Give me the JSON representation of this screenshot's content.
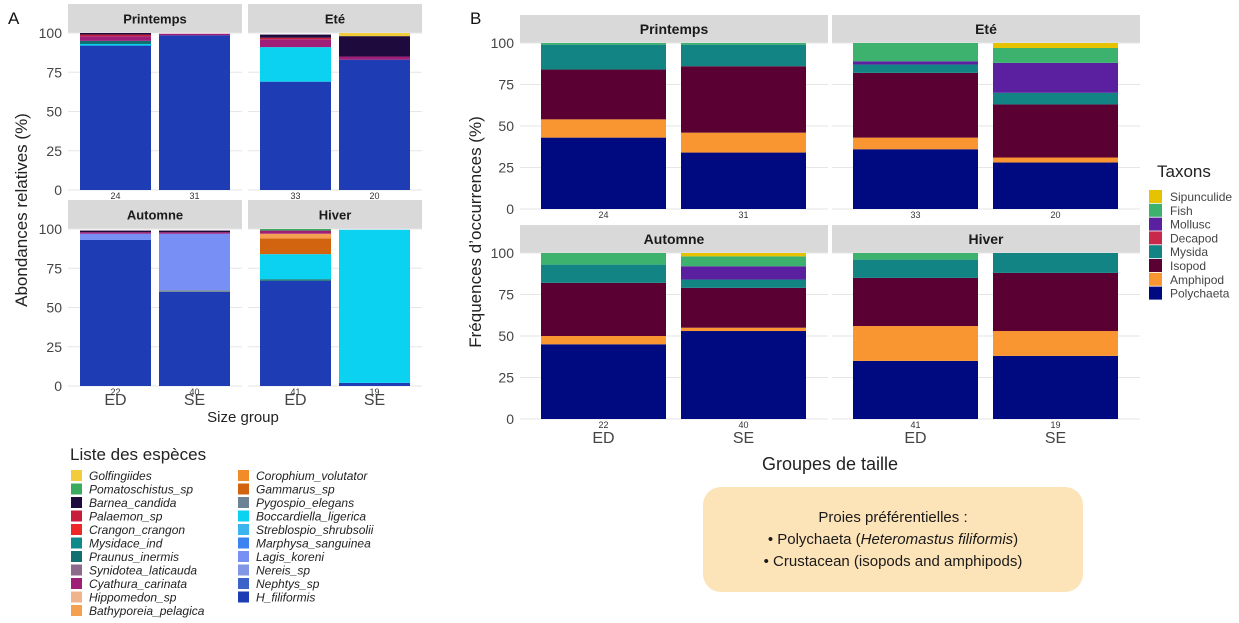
{
  "panel_a": {
    "tag": "A",
    "ylabel": "Abondances relatives (%)",
    "xlabel": "Size group",
    "x_ticks": [
      "ED",
      "SE"
    ],
    "y_ticks": [
      "0",
      "25",
      "50",
      "75",
      "100"
    ],
    "legend_title": "Liste des espèces"
  },
  "panel_b": {
    "tag": "B",
    "ylabel": "Fréquences d’occurrences (%)",
    "xlabel": "Groupes de taille",
    "x_ticks": [
      "ED",
      "SE"
    ],
    "y_ticks": [
      "0",
      "25",
      "50",
      "75",
      "100"
    ],
    "legend_title": "Taxons"
  },
  "note": {
    "title": "Proies préférentielles :",
    "line1_pre": "• Polychaeta (",
    "line1_ital": "Heteromastus filiformis",
    "line1_post": ")",
    "line2": "• Crustacean (isopods and amphipods)"
  },
  "chart_data": [
    {
      "type": "bar",
      "stacked": true,
      "panel": "A",
      "ylabel": "Abondances relatives (%)",
      "xlabel": "Size group",
      "ylim": [
        0,
        100
      ],
      "species": [
        {
          "name": "Golfingiides",
          "color": "#f2cc3a"
        },
        {
          "name": "Pomatoschistus_sp",
          "color": "#3aaa5c"
        },
        {
          "name": "Barnea_candida",
          "color": "#1e0a3c"
        },
        {
          "name": "Palaemon_sp",
          "color": "#c81e3c"
        },
        {
          "name": "Crangon_crangon",
          "color": "#ee2828"
        },
        {
          "name": "Mysidace_ind",
          "color": "#0f8a8a"
        },
        {
          "name": "Praunus_inermis",
          "color": "#127070"
        },
        {
          "name": "Synidotea_laticauda",
          "color": "#8c6a8c"
        },
        {
          "name": "Cyathura_carinata",
          "color": "#9e1e78"
        },
        {
          "name": "Hippomedon_sp",
          "color": "#f0b48c"
        },
        {
          "name": "Bathyporeia_pelagica",
          "color": "#f5a050"
        },
        {
          "name": "Corophium_volutator",
          "color": "#f28c28"
        },
        {
          "name": "Gammarus_sp",
          "color": "#d2640f"
        },
        {
          "name": "Pygospio_elegans",
          "color": "#6e8296"
        },
        {
          "name": "Boccardiella_ligerica",
          "color": "#0ad2f0"
        },
        {
          "name": "Streblospio_shrubsolii",
          "color": "#3cb4f0"
        },
        {
          "name": "Marphysa_sanguinea",
          "color": "#3c82f0"
        },
        {
          "name": "Lagis_koreni",
          "color": "#7890f5"
        },
        {
          "name": "Nereis_sp",
          "color": "#8296e6"
        },
        {
          "name": "Nephtys_sp",
          "color": "#3c64c8"
        },
        {
          "name": "H_filiformis",
          "color": "#1e3cb4"
        }
      ],
      "facets": [
        {
          "title": "Printemps",
          "bars": [
            {
              "group": "ED",
              "n": "24",
              "segments": [
                {
                  "sp": "H_filiformis",
                  "v": 92
                },
                {
                  "sp": "Boccardiella_ligerica",
                  "v": 1
                },
                {
                  "sp": "Praunus_inermis",
                  "v": 2
                },
                {
                  "sp": "Cyathura_carinata",
                  "v": 3
                },
                {
                  "sp": "Palaemon_sp",
                  "v": 1
                },
                {
                  "sp": "Barnea_candida",
                  "v": 1
                }
              ]
            },
            {
              "group": "SE",
              "n": "31",
              "segments": [
                {
                  "sp": "H_filiformis",
                  "v": 98.5
                },
                {
                  "sp": "Cyathura_carinata",
                  "v": 1
                }
              ]
            }
          ]
        },
        {
          "title": "Eté",
          "bars": [
            {
              "group": "ED",
              "n": "33",
              "segments": [
                {
                  "sp": "H_filiformis",
                  "v": 69
                },
                {
                  "sp": "Boccardiella_ligerica",
                  "v": 22
                },
                {
                  "sp": "Cyathura_carinata",
                  "v": 5
                },
                {
                  "sp": "Palaemon_sp",
                  "v": 1
                },
                {
                  "sp": "Barnea_candida",
                  "v": 2
                }
              ]
            },
            {
              "group": "SE",
              "n": "20",
              "segments": [
                {
                  "sp": "H_filiformis",
                  "v": 83
                },
                {
                  "sp": "Cyathura_carinata",
                  "v": 2
                },
                {
                  "sp": "Barnea_candida",
                  "v": 13
                },
                {
                  "sp": "Golfingiides",
                  "v": 2
                }
              ]
            }
          ]
        },
        {
          "title": "Automne",
          "bars": [
            {
              "group": "ED",
              "n": "22",
              "segments": [
                {
                  "sp": "H_filiformis",
                  "v": 93
                },
                {
                  "sp": "Lagis_koreni",
                  "v": 4
                },
                {
                  "sp": "Cyathura_carinata",
                  "v": 1
                },
                {
                  "sp": "Barnea_candida",
                  "v": 1
                }
              ]
            },
            {
              "group": "SE",
              "n": "40",
              "segments": [
                {
                  "sp": "H_filiformis",
                  "v": 60
                },
                {
                  "sp": "Pygospio_elegans",
                  "v": 1
                },
                {
                  "sp": "Lagis_koreni",
                  "v": 36
                },
                {
                  "sp": "Cyathura_carinata",
                  "v": 1
                },
                {
                  "sp": "Barnea_candida",
                  "v": 1
                }
              ]
            }
          ]
        },
        {
          "title": "Hiver",
          "bars": [
            {
              "group": "ED",
              "n": "41",
              "segments": [
                {
                  "sp": "H_filiformis",
                  "v": 67
                },
                {
                  "sp": "Praunus_inermis",
                  "v": 1
                },
                {
                  "sp": "Boccardiella_ligerica",
                  "v": 16
                },
                {
                  "sp": "Gammarus_sp",
                  "v": 10
                },
                {
                  "sp": "Bathyporeia_pelagica",
                  "v": 3
                },
                {
                  "sp": "Cyathura_carinata",
                  "v": 2
                },
                {
                  "sp": "Pomatoschistus_sp",
                  "v": 1
                }
              ]
            },
            {
              "group": "SE",
              "n": "19",
              "segments": [
                {
                  "sp": "H_filiformis",
                  "v": 2
                },
                {
                  "sp": "Boccardiella_ligerica",
                  "v": 97.5
                }
              ]
            }
          ]
        }
      ]
    },
    {
      "type": "bar",
      "stacked": true,
      "panel": "B",
      "ylabel": "Fréquences d’occurrences (%)",
      "xlabel": "Groupes de taille",
      "ylim": [
        0,
        100
      ],
      "taxa": [
        {
          "name": "Sipunculide",
          "color": "#e6c200"
        },
        {
          "name": "Fish",
          "color": "#3cb26e"
        },
        {
          "name": "Mollusc",
          "color": "#5a20a0"
        },
        {
          "name": "Decapod",
          "color": "#c8284a"
        },
        {
          "name": "Mysida",
          "color": "#128484"
        },
        {
          "name": "Isopod",
          "color": "#5a0032"
        },
        {
          "name": "Amphipod",
          "color": "#fa9632"
        },
        {
          "name": "Polychaeta",
          "color": "#000a80"
        }
      ],
      "facets": [
        {
          "title": "Printemps",
          "bars": [
            {
              "group": "ED",
              "n": "24",
              "segments": [
                {
                  "tx": "Polychaeta",
                  "v": 43
                },
                {
                  "tx": "Amphipod",
                  "v": 11
                },
                {
                  "tx": "Isopod",
                  "v": 30
                },
                {
                  "tx": "Mysida",
                  "v": 15
                },
                {
                  "tx": "Fish",
                  "v": 1
                }
              ]
            },
            {
              "group": "SE",
              "n": "31",
              "segments": [
                {
                  "tx": "Polychaeta",
                  "v": 34
                },
                {
                  "tx": "Amphipod",
                  "v": 12
                },
                {
                  "tx": "Isopod",
                  "v": 40
                },
                {
                  "tx": "Mysida",
                  "v": 13
                },
                {
                  "tx": "Fish",
                  "v": 1
                }
              ]
            }
          ]
        },
        {
          "title": "Eté",
          "bars": [
            {
              "group": "ED",
              "n": "33",
              "segments": [
                {
                  "tx": "Polychaeta",
                  "v": 36
                },
                {
                  "tx": "Amphipod",
                  "v": 7
                },
                {
                  "tx": "Isopod",
                  "v": 39
                },
                {
                  "tx": "Mysida",
                  "v": 5
                },
                {
                  "tx": "Mollusc",
                  "v": 2
                },
                {
                  "tx": "Fish",
                  "v": 11
                }
              ]
            },
            {
              "group": "SE",
              "n": "20",
              "segments": [
                {
                  "tx": "Polychaeta",
                  "v": 28
                },
                {
                  "tx": "Amphipod",
                  "v": 3
                },
                {
                  "tx": "Isopod",
                  "v": 32
                },
                {
                  "tx": "Mysida",
                  "v": 7
                },
                {
                  "tx": "Mollusc",
                  "v": 18
                },
                {
                  "tx": "Fish",
                  "v": 9
                },
                {
                  "tx": "Sipunculide",
                  "v": 3
                }
              ]
            }
          ]
        },
        {
          "title": "Automne",
          "bars": [
            {
              "group": "ED",
              "n": "22",
              "segments": [
                {
                  "tx": "Polychaeta",
                  "v": 45
                },
                {
                  "tx": "Amphipod",
                  "v": 5
                },
                {
                  "tx": "Isopod",
                  "v": 32
                },
                {
                  "tx": "Mysida",
                  "v": 11
                },
                {
                  "tx": "Fish",
                  "v": 7
                }
              ]
            },
            {
              "group": "SE",
              "n": "40",
              "segments": [
                {
                  "tx": "Polychaeta",
                  "v": 53
                },
                {
                  "tx": "Amphipod",
                  "v": 2
                },
                {
                  "tx": "Isopod",
                  "v": 24
                },
                {
                  "tx": "Mysida",
                  "v": 5
                },
                {
                  "tx": "Mollusc",
                  "v": 8
                },
                {
                  "tx": "Fish",
                  "v": 6
                },
                {
                  "tx": "Sipunculide",
                  "v": 2
                }
              ]
            }
          ]
        },
        {
          "title": "Hiver",
          "bars": [
            {
              "group": "ED",
              "n": "41",
              "segments": [
                {
                  "tx": "Polychaeta",
                  "v": 35
                },
                {
                  "tx": "Amphipod",
                  "v": 21
                },
                {
                  "tx": "Isopod",
                  "v": 29
                },
                {
                  "tx": "Mysida",
                  "v": 11
                },
                {
                  "tx": "Fish",
                  "v": 4
                }
              ]
            },
            {
              "group": "SE",
              "n": "19",
              "segments": [
                {
                  "tx": "Polychaeta",
                  "v": 38
                },
                {
                  "tx": "Amphipod",
                  "v": 15
                },
                {
                  "tx": "Isopod",
                  "v": 35
                },
                {
                  "tx": "Mysida",
                  "v": 12
                }
              ]
            }
          ]
        }
      ]
    }
  ]
}
